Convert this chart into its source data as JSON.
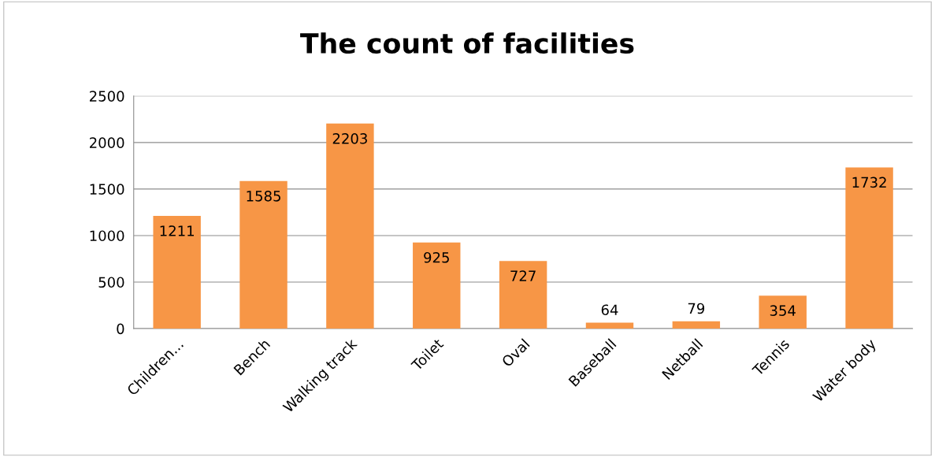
{
  "chart_data": {
    "type": "bar",
    "title": "The count of facilities",
    "categories": [
      "Children...",
      "Bench",
      "Walking track",
      "Toilet",
      "Oval",
      "Baseball",
      "Netball",
      "Tennis",
      "Water body"
    ],
    "values": [
      1211,
      1585,
      2203,
      925,
      727,
      64,
      79,
      354,
      1732
    ],
    "color": "#f79646",
    "ylim": [
      0,
      2500
    ],
    "yticks": [
      0,
      500,
      1000,
      1500,
      2000,
      2500
    ],
    "grid": "y",
    "data_labels": true
  }
}
